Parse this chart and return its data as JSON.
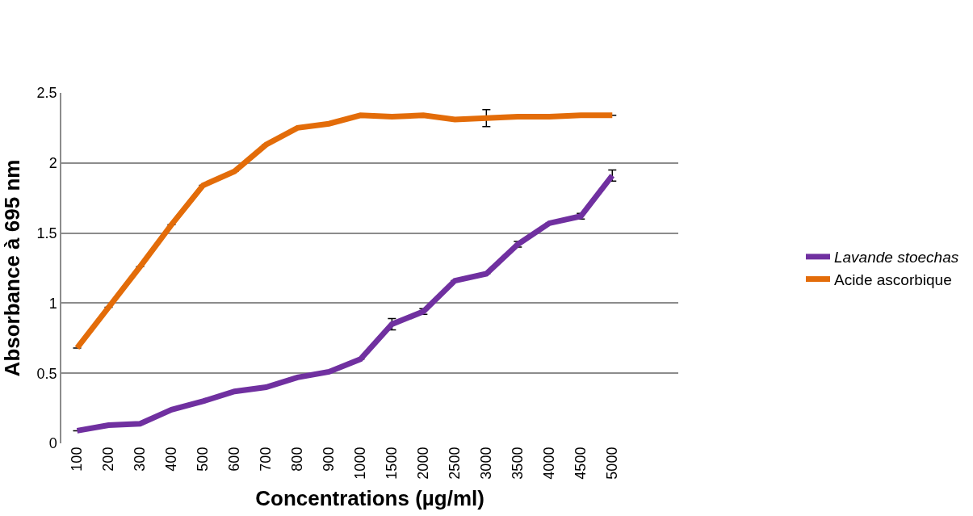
{
  "chart_data": {
    "type": "line",
    "xlabel": "Concentrations (µg/ml)",
    "ylabel": "Absorbance à 695 nm",
    "categories": [
      "100",
      "200",
      "300",
      "400",
      "500",
      "600",
      "700",
      "800",
      "900",
      "1000",
      "1500",
      "2000",
      "2500",
      "3000",
      "3500",
      "4000",
      "4500",
      "5000"
    ],
    "series": [
      {
        "name": "Lavande stoechas",
        "color": "#7030a0",
        "values": [
          0.09,
          0.13,
          0.14,
          0.24,
          0.3,
          0.37,
          0.4,
          0.47,
          0.51,
          0.6,
          0.85,
          0.94,
          1.16,
          1.21,
          1.42,
          1.57,
          1.62,
          1.91
        ],
        "errors": [
          null,
          null,
          null,
          null,
          null,
          null,
          null,
          null,
          null,
          null,
          0.04,
          0.02,
          null,
          null,
          0.02,
          null,
          0.02,
          0.04
        ]
      },
      {
        "name": "Acide ascorbique",
        "color": "#e36c09",
        "values": [
          0.68,
          0.97,
          1.26,
          1.56,
          1.84,
          1.94,
          2.13,
          2.25,
          2.28,
          2.34,
          2.33,
          2.34,
          2.31,
          2.32,
          2.33,
          2.33,
          2.34,
          2.34
        ],
        "errors": [
          null,
          null,
          null,
          null,
          null,
          null,
          null,
          null,
          null,
          null,
          null,
          null,
          null,
          0.06,
          null,
          null,
          null,
          null
        ]
      }
    ],
    "ylim": [
      0,
      2.5
    ],
    "yticks": [
      0,
      0.5,
      1,
      1.5,
      2,
      2.5
    ],
    "grid": "y",
    "legend": "right",
    "marker": "none",
    "line_style": "solid"
  }
}
